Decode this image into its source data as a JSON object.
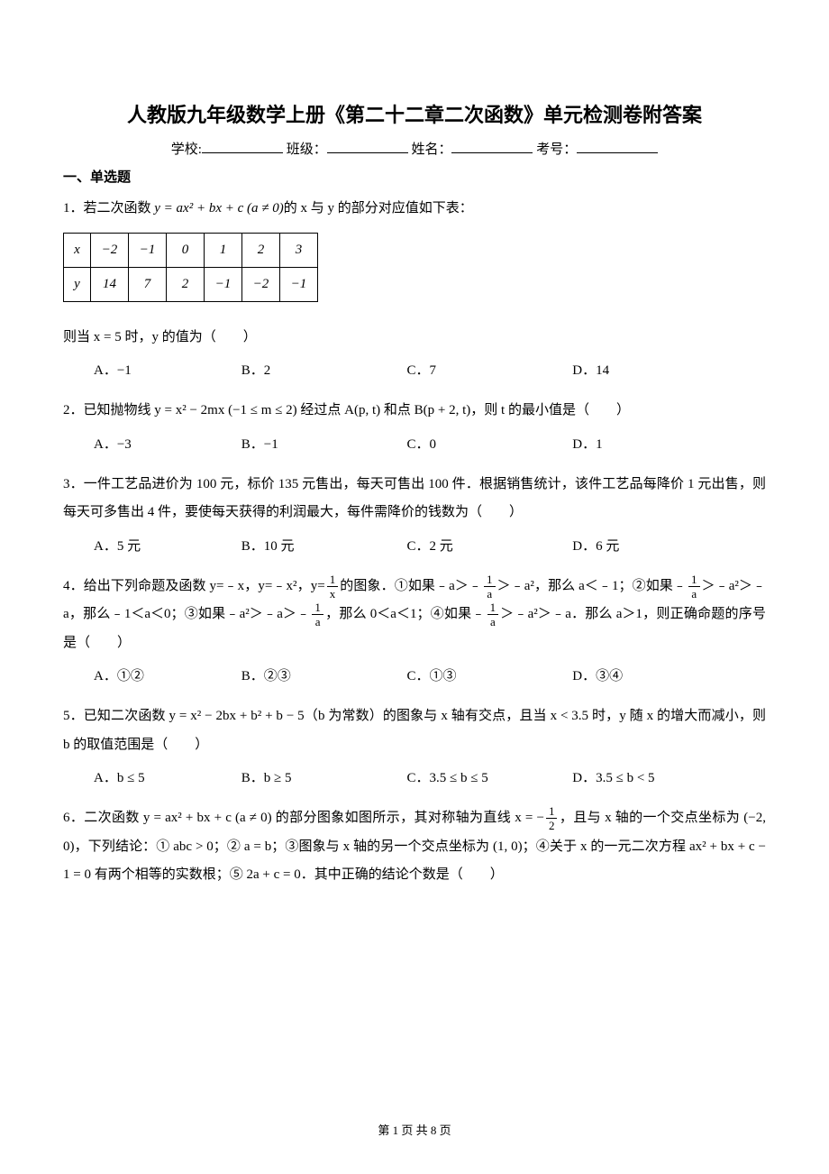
{
  "title": "人教版九年级数学上册《第二十二章二次函数》单元检测卷附答案",
  "info_labels": {
    "school": "学校:",
    "class": "班级：",
    "name": "姓名：",
    "exam_no": "考号："
  },
  "section1": "一、单选题",
  "q1": {
    "stem_a": "1．若二次函数 ",
    "formula": "y = ax² + bx + c (a ≠ 0)",
    "stem_b": "的 x 与 y 的部分对应值如下表：",
    "table": {
      "row_x_label": "x",
      "row_y_label": "y",
      "x": [
        "−2",
        "−1",
        "0",
        "1",
        "2",
        "3"
      ],
      "y": [
        "14",
        "7",
        "2",
        "−1",
        "−2",
        "−1"
      ]
    },
    "stem_c": "则当 x = 5 时，y 的值为（　　）",
    "options": {
      "A": "A．−1",
      "B": "B．2",
      "C": "C．7",
      "D": "D．14"
    }
  },
  "q2": {
    "stem": "2．已知抛物线 y = x² − 2mx (−1 ≤ m ≤ 2) 经过点 A(p, t) 和点 B(p + 2, t)，则 t 的最小值是（　　）",
    "options": {
      "A": "A．−3",
      "B": "B．−1",
      "C": "C．0",
      "D": "D．1"
    }
  },
  "q3": {
    "stem": "3．一件工艺品进价为 100 元，标价 135 元售出，每天可售出 100 件．根据销售统计，该件工艺品每降价 1 元出售，则每天可多售出 4 件，要使每天获得的利润最大，每件需降价的钱数为（　　）",
    "options": {
      "A": "A．5 元",
      "B": "B．10 元",
      "C": "C．2 元",
      "D": "D．6 元"
    }
  },
  "q4": {
    "stem_parts": {
      "p1": "4．给出下列命题及函数 y=﹣x，y=﹣x²，y=",
      "frac1_num": "1",
      "frac1_den": "x",
      "p2": "的图象．①如果﹣a＞﹣",
      "frac2_num": "1",
      "frac2_den": "a",
      "p3": "＞﹣a²，那么 a＜﹣1；②如果﹣",
      "frac3_num": "1",
      "frac3_den": "a",
      "p4": "＞﹣a²＞﹣a，那么﹣1＜a＜0；③如果﹣a²＞﹣a＞﹣",
      "frac4_num": "1",
      "frac4_den": "a",
      "p5": "，那么 0＜a＜1；④如果﹣",
      "frac5_num": "1",
      "frac5_den": "a",
      "p6": "＞﹣a²＞﹣a．那么 a＞1，则正确命题的序号是（　　）"
    },
    "options": {
      "A": "A．①②",
      "B": "B．②③",
      "C": "C．①③",
      "D": "D．③④"
    }
  },
  "q5": {
    "stem": "5．已知二次函数 y = x² − 2bx + b² + b − 5（b 为常数）的图象与 x 轴有交点，且当 x < 3.5 时，y 随 x 的增大而减小，则 b 的取值范围是（　　）",
    "options": {
      "A": "A．b ≤ 5",
      "B": "B．b ≥ 5",
      "C": "C．3.5 ≤ b ≤ 5",
      "D": "D．3.5 ≤ b < 5"
    }
  },
  "q6": {
    "stem_parts": {
      "p1": "6．二次函数 y = ax² + bx + c (a ≠ 0) 的部分图象如图所示，其对称轴为直线 x = −",
      "frac_num": "1",
      "frac_den": "2",
      "p2": "，且与 x 轴的一个交点坐标为 (−2, 0)，下列结论：① abc > 0；② a = b；③图象与 x 轴的另一个交点坐标为 (1, 0)；④关于 x 的一元二次方程 ax² + bx + c − 1 = 0 有两个相等的实数根；⑤ 2a + c = 0．其中正确的结论个数是（　　）"
    }
  },
  "footer": {
    "text": "第 1 页 共 8 页"
  }
}
